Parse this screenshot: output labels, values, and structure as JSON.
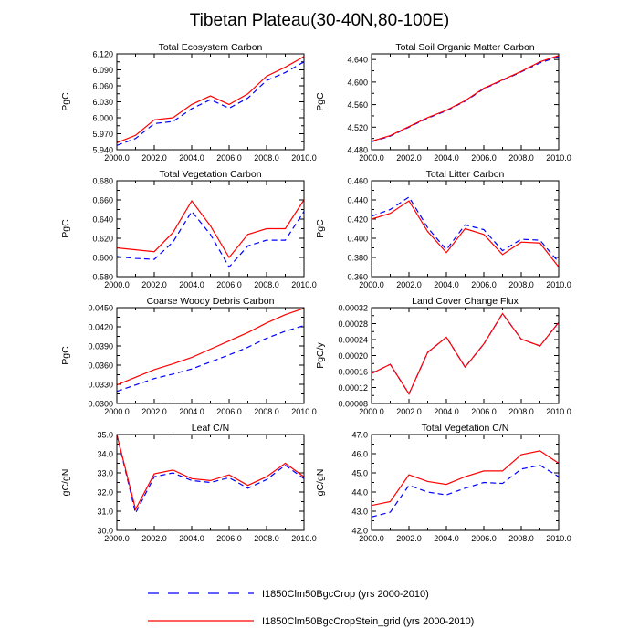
{
  "figure": {
    "title": "Tibetan Plateau(30-40N,80-100E)"
  },
  "legend": {
    "placement": "bottom",
    "entries": [
      {
        "label": "I1850Clm50BgcCrop (yrs 2000-2010)",
        "color": "#0000ff",
        "style": "dashed"
      },
      {
        "label": "I1850Clm50BgcCropStein_grid (yrs 2000-2010)",
        "color": "#ff0000",
        "style": "solid"
      }
    ]
  },
  "chart_data": [
    {
      "type": "line",
      "title": "Total Ecosystem Carbon",
      "ylabel": "PgC",
      "xlim": [
        2000,
        2010
      ],
      "ylim": [
        5.94,
        6.12
      ],
      "xticks": [
        2000,
        2002,
        2004,
        2006,
        2008,
        2010
      ],
      "xtick_labels": [
        "2000.0",
        "2002.0",
        "2004.0",
        "2006.0",
        "2008.0",
        "2010.0"
      ],
      "yticks": [
        5.94,
        5.97,
        6.0,
        6.03,
        6.06,
        6.09,
        6.12
      ],
      "ytick_labels": [
        "5.940",
        "5.970",
        "6.000",
        "6.030",
        "6.060",
        "6.090",
        "6.120"
      ],
      "x": [
        2000,
        2001,
        2002,
        2003,
        2004,
        2005,
        2006,
        2007,
        2008,
        2009,
        2010
      ],
      "series": [
        {
          "values": [
            5.948,
            5.961,
            5.989,
            5.993,
            6.017,
            6.034,
            6.018,
            6.037,
            6.07,
            6.085,
            6.105
          ],
          "color": "#0000ff",
          "style": "dashed"
        },
        {
          "values": [
            5.953,
            5.967,
            5.996,
            6.0,
            6.025,
            6.041,
            6.025,
            6.045,
            6.078,
            6.095,
            6.115
          ],
          "color": "#ff0000",
          "style": "solid"
        }
      ]
    },
    {
      "type": "line",
      "title": "Total Soil Organic Matter Carbon",
      "ylabel": "PgC",
      "xlim": [
        2000,
        2010
      ],
      "ylim": [
        4.48,
        4.65
      ],
      "xticks": [
        2000,
        2002,
        2004,
        2006,
        2008,
        2010
      ],
      "xtick_labels": [
        "2000.0",
        "2002.0",
        "2004.0",
        "2006.0",
        "2008.0",
        "2010.0"
      ],
      "yticks": [
        4.48,
        4.52,
        4.56,
        4.6,
        4.64
      ],
      "ytick_labels": [
        "4.480",
        "4.520",
        "4.560",
        "4.600",
        "4.640"
      ],
      "x": [
        2000,
        2001,
        2002,
        2003,
        2004,
        2005,
        2006,
        2007,
        2008,
        2009,
        2010
      ],
      "series": [
        {
          "values": [
            4.494,
            4.504,
            4.52,
            4.536,
            4.549,
            4.566,
            4.588,
            4.603,
            4.618,
            4.634,
            4.645
          ],
          "color": "#0000ff",
          "style": "dashed"
        },
        {
          "values": [
            4.495,
            4.505,
            4.521,
            4.537,
            4.55,
            4.567,
            4.589,
            4.604,
            4.619,
            4.636,
            4.647
          ],
          "color": "#ff0000",
          "style": "solid"
        }
      ]
    },
    {
      "type": "line",
      "title": "Total Vegetation Carbon",
      "ylabel": "PgC",
      "xlim": [
        2000,
        2010
      ],
      "ylim": [
        0.58,
        0.68
      ],
      "xticks": [
        2000,
        2002,
        2004,
        2006,
        2008,
        2010
      ],
      "xtick_labels": [
        "2000.0",
        "2002.0",
        "2004.0",
        "2006.0",
        "2008.0",
        "2010.0"
      ],
      "yticks": [
        0.58,
        0.6,
        0.62,
        0.64,
        0.66,
        0.68
      ],
      "ytick_labels": [
        "0.580",
        "0.600",
        "0.620",
        "0.640",
        "0.660",
        "0.680"
      ],
      "x": [
        2000,
        2001,
        2002,
        2003,
        2004,
        2005,
        2006,
        2007,
        2008,
        2009,
        2010
      ],
      "series": [
        {
          "values": [
            0.601,
            0.599,
            0.598,
            0.616,
            0.648,
            0.624,
            0.59,
            0.612,
            0.618,
            0.618,
            0.648
          ],
          "color": "#0000ff",
          "style": "dashed"
        },
        {
          "values": [
            0.61,
            0.608,
            0.606,
            0.626,
            0.659,
            0.633,
            0.6,
            0.624,
            0.63,
            0.63,
            0.66
          ],
          "color": "#ff0000",
          "style": "solid"
        }
      ]
    },
    {
      "type": "line",
      "title": "Total Litter Carbon",
      "ylabel": "PgC",
      "xlim": [
        2000,
        2010
      ],
      "ylim": [
        0.36,
        0.46
      ],
      "xticks": [
        2000,
        2002,
        2004,
        2006,
        2008,
        2010
      ],
      "xtick_labels": [
        "2000.0",
        "2002.0",
        "2004.0",
        "2006.0",
        "2008.0",
        "2010.0"
      ],
      "yticks": [
        0.36,
        0.38,
        0.4,
        0.42,
        0.44,
        0.46
      ],
      "ytick_labels": [
        "0.360",
        "0.380",
        "0.400",
        "0.420",
        "0.440",
        "0.460"
      ],
      "x": [
        2000,
        2001,
        2002,
        2003,
        2004,
        2005,
        2006,
        2007,
        2008,
        2009,
        2010
      ],
      "series": [
        {
          "values": [
            0.423,
            0.43,
            0.443,
            0.411,
            0.388,
            0.414,
            0.409,
            0.387,
            0.399,
            0.398,
            0.375
          ],
          "color": "#0000ff",
          "style": "dashed"
        },
        {
          "values": [
            0.42,
            0.426,
            0.439,
            0.407,
            0.385,
            0.41,
            0.404,
            0.383,
            0.396,
            0.395,
            0.37
          ],
          "color": "#ff0000",
          "style": "solid"
        }
      ]
    },
    {
      "type": "line",
      "title": "Coarse Woody Debris Carbon",
      "ylabel": "PgC",
      "xlim": [
        2000,
        2010
      ],
      "ylim": [
        0.03,
        0.045
      ],
      "xticks": [
        2000,
        2002,
        2004,
        2006,
        2008,
        2010
      ],
      "xtick_labels": [
        "2000.0",
        "2002.0",
        "2004.0",
        "2006.0",
        "2008.0",
        "2010.0"
      ],
      "yticks": [
        0.03,
        0.033,
        0.036,
        0.039,
        0.042,
        0.045
      ],
      "ytick_labels": [
        "0.0300",
        "0.0330",
        "0.0360",
        "0.0390",
        "0.0420",
        "0.0450"
      ],
      "x": [
        2000,
        2001,
        2002,
        2003,
        2004,
        2005,
        2006,
        2007,
        2008,
        2009,
        2010
      ],
      "series": [
        {
          "values": [
            0.0319,
            0.0329,
            0.0339,
            0.0346,
            0.0354,
            0.0365,
            0.0376,
            0.0388,
            0.0402,
            0.0413,
            0.0422
          ],
          "color": "#0000ff",
          "style": "dashed"
        },
        {
          "values": [
            0.0329,
            0.0341,
            0.0353,
            0.0362,
            0.0372,
            0.0385,
            0.0398,
            0.0411,
            0.0426,
            0.0439,
            0.0449
          ],
          "color": "#ff0000",
          "style": "solid"
        }
      ]
    },
    {
      "type": "line",
      "title": "Land Cover Change Flux",
      "ylabel": "PgC/y",
      "xlim": [
        2000,
        2010
      ],
      "ylim": [
        8e-05,
        0.00032
      ],
      "xticks": [
        2000,
        2002,
        2004,
        2006,
        2008,
        2010
      ],
      "xtick_labels": [
        "2000.0",
        "2002.0",
        "2004.0",
        "2006.0",
        "2008.0",
        "2010.0"
      ],
      "yticks": [
        8e-05,
        0.00012,
        0.00016,
        0.0002,
        0.00024,
        0.00028,
        0.00032
      ],
      "ytick_labels": [
        "0.00008",
        "0.00012",
        "0.00016",
        "0.00020",
        "0.00024",
        "0.00028",
        "0.00032"
      ],
      "x": [
        2000,
        2001,
        2002,
        2003,
        2004,
        2005,
        2006,
        2007,
        2008,
        2009,
        2010
      ],
      "series": [
        {
          "values": [
            0.000155,
            0.000178,
            0.000104,
            0.000208,
            0.000246,
            0.000171,
            0.000229,
            0.000305,
            0.000241,
            0.000224,
            0.000283
          ],
          "color": "#0000ff",
          "style": "dashed"
        },
        {
          "values": [
            0.000155,
            0.000178,
            0.000104,
            0.000208,
            0.000246,
            0.000171,
            0.000229,
            0.000305,
            0.000241,
            0.000224,
            0.000283
          ],
          "color": "#ff0000",
          "style": "solid"
        }
      ]
    },
    {
      "type": "line",
      "title": "Leaf C/N",
      "ylabel": "gC/gN",
      "xlim": [
        2000,
        2010
      ],
      "ylim": [
        30.0,
        35.0
      ],
      "xticks": [
        2000,
        2002,
        2004,
        2006,
        2008,
        2010
      ],
      "xtick_labels": [
        "2000.0",
        "2002.0",
        "2004.0",
        "2006.0",
        "2008.0",
        "2010.0"
      ],
      "yticks": [
        30,
        31,
        32,
        33,
        34,
        35
      ],
      "ytick_labels": [
        "30.0",
        "31.0",
        "32.0",
        "33.0",
        "34.0",
        "35.0"
      ],
      "x": [
        2000,
        2001,
        2002,
        2003,
        2004,
        2005,
        2006,
        2007,
        2008,
        2009,
        2010
      ],
      "series": [
        {
          "values": [
            35.0,
            30.9,
            32.8,
            33.0,
            32.6,
            32.5,
            32.75,
            32.2,
            32.65,
            33.4,
            32.7
          ],
          "color": "#0000ff",
          "style": "dashed"
        },
        {
          "values": [
            35.0,
            31.1,
            32.95,
            33.15,
            32.7,
            32.6,
            32.9,
            32.35,
            32.8,
            33.5,
            32.8
          ],
          "color": "#ff0000",
          "style": "solid"
        }
      ]
    },
    {
      "type": "line",
      "title": "Total Vegetation C/N",
      "ylabel": "gC/gN",
      "xlim": [
        2000,
        2010
      ],
      "ylim": [
        42.0,
        47.0
      ],
      "xticks": [
        2000,
        2002,
        2004,
        2006,
        2008,
        2010
      ],
      "xtick_labels": [
        "2000.0",
        "2002.0",
        "2004.0",
        "2006.0",
        "2008.0",
        "2010.0"
      ],
      "yticks": [
        42,
        43,
        44,
        45,
        46,
        47
      ],
      "ytick_labels": [
        "42.0",
        "43.0",
        "44.0",
        "45.0",
        "46.0",
        "47.0"
      ],
      "x": [
        2000,
        2001,
        2002,
        2003,
        2004,
        2005,
        2006,
        2007,
        2008,
        2009,
        2010
      ],
      "series": [
        {
          "values": [
            42.7,
            42.95,
            44.35,
            44.0,
            43.85,
            44.2,
            44.5,
            44.45,
            45.2,
            45.4,
            44.8
          ],
          "color": "#0000ff",
          "style": "dashed"
        },
        {
          "values": [
            43.3,
            43.5,
            44.9,
            44.55,
            44.4,
            44.8,
            45.1,
            45.1,
            45.95,
            46.15,
            45.5
          ],
          "color": "#ff0000",
          "style": "solid"
        }
      ]
    }
  ]
}
